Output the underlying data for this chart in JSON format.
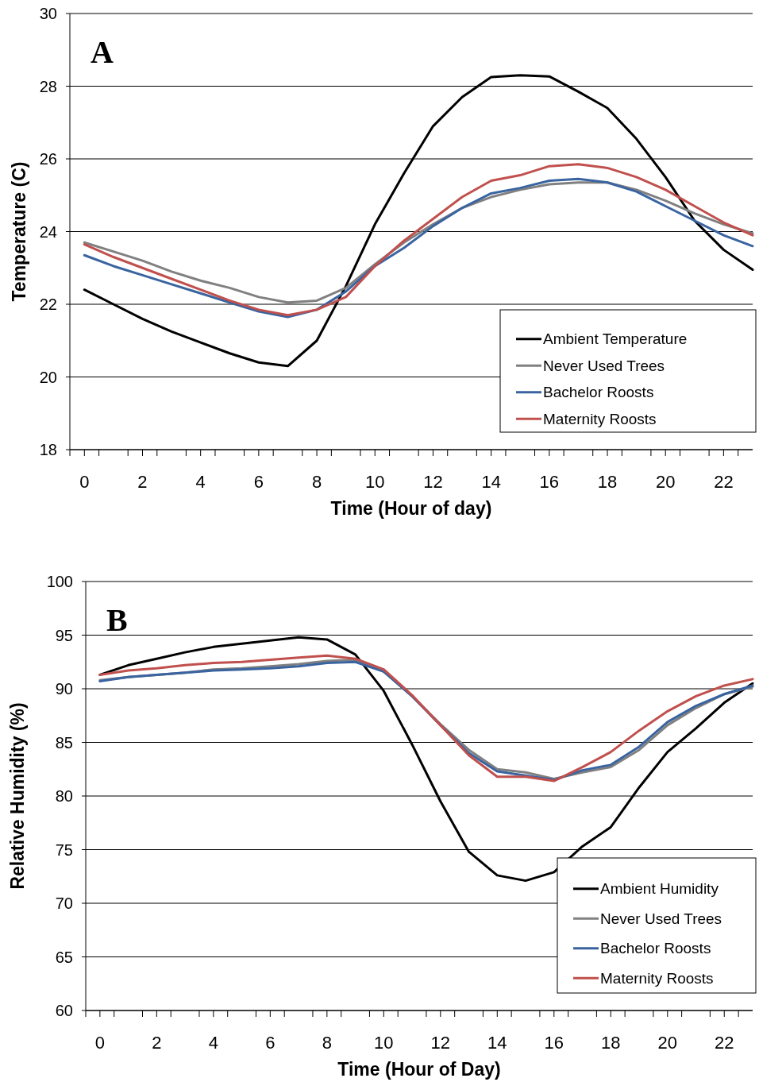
{
  "chart_data": [
    {
      "type": "line",
      "annotations": [
        "A"
      ],
      "xlabel": "Time (Hour of day)",
      "ylabel": "Temperature (C)",
      "x": [
        0,
        1,
        2,
        3,
        4,
        5,
        6,
        7,
        8,
        9,
        10,
        11,
        12,
        13,
        14,
        15,
        16,
        17,
        18,
        19,
        20,
        21,
        22,
        23
      ],
      "xlim": [
        -0.5,
        23
      ],
      "xticks": [
        {
          "value": -0.5,
          "label": null
        },
        0,
        {
          "value": 0.5,
          "label": null
        },
        {
          "value": 1.5,
          "label": null
        },
        2,
        {
          "value": 2.5,
          "label": null
        },
        {
          "value": 3.5,
          "label": null
        },
        4,
        {
          "value": 4.5,
          "label": null
        },
        {
          "value": 5.5,
          "label": null
        },
        6,
        {
          "value": 6.5,
          "label": null
        },
        {
          "value": 7.5,
          "label": null
        },
        8,
        {
          "value": 8.5,
          "label": null
        },
        {
          "value": 9.5,
          "label": null
        },
        10,
        {
          "value": 10.5,
          "label": null
        },
        {
          "value": 11.5,
          "label": null
        },
        12,
        {
          "value": 12.5,
          "label": null
        },
        {
          "value": 13.5,
          "label": null
        },
        14,
        {
          "value": 14.5,
          "label": null
        },
        {
          "value": 15.5,
          "label": null
        },
        16,
        {
          "value": 16.5,
          "label": null
        },
        {
          "value": 17.5,
          "label": null
        },
        18,
        {
          "value": 18.5,
          "label": null
        },
        {
          "value": 19.5,
          "label": null
        },
        20,
        {
          "value": 20.5,
          "label": null
        },
        {
          "value": 21.5,
          "label": null
        },
        22,
        {
          "value": 22.5,
          "label": null
        }
      ],
      "ylim": [
        18,
        30
      ],
      "yticks": [
        18,
        20,
        22,
        24,
        26,
        28,
        30
      ],
      "grid": "y",
      "legend": "bottom right",
      "line_style": "solid",
      "series": [
        {
          "name": "Ambient Temperature",
          "color": "#000000",
          "values": [
            22.4,
            22.0,
            21.6,
            21.25,
            20.95,
            20.65,
            20.4,
            20.3,
            21.0,
            22.5,
            24.2,
            25.6,
            26.9,
            27.7,
            28.25,
            28.3,
            28.27,
            27.85,
            27.4,
            26.55,
            25.5,
            24.3,
            23.5,
            22.95
          ]
        },
        {
          "name": "Never Used Trees",
          "color": "#808080",
          "values": [
            23.7,
            23.45,
            23.2,
            22.9,
            22.65,
            22.45,
            22.2,
            22.05,
            22.1,
            22.45,
            23.1,
            23.7,
            24.2,
            24.65,
            24.95,
            25.15,
            25.3,
            25.35,
            25.35,
            25.15,
            24.85,
            24.5,
            24.2,
            23.95
          ]
        },
        {
          "name": "Bachelor Roosts",
          "color": "#3a64a0",
          "values": [
            23.35,
            23.05,
            22.8,
            22.55,
            22.3,
            22.05,
            21.8,
            21.65,
            21.85,
            22.35,
            23.05,
            23.55,
            24.15,
            24.65,
            25.05,
            25.2,
            25.4,
            25.45,
            25.35,
            25.1,
            24.7,
            24.3,
            23.9,
            23.6
          ]
        },
        {
          "name": "Maternity Roosts",
          "color": "#c0504d",
          "values": [
            23.65,
            23.3,
            23.0,
            22.7,
            22.4,
            22.1,
            21.85,
            21.7,
            21.85,
            22.2,
            23.05,
            23.75,
            24.35,
            24.95,
            25.4,
            25.55,
            25.8,
            25.85,
            25.75,
            25.5,
            25.15,
            24.7,
            24.25,
            23.9
          ]
        }
      ]
    },
    {
      "type": "line",
      "annotations": [
        "B"
      ],
      "xlabel": "Time (Hour of Day)",
      "ylabel": "Relative Humidity (%)",
      "x": [
        0,
        1,
        2,
        3,
        4,
        5,
        6,
        7,
        8,
        9,
        10,
        11,
        12,
        13,
        14,
        15,
        16,
        17,
        18,
        19,
        20,
        21,
        22,
        23
      ],
      "xlim": [
        -0.5,
        23
      ],
      "xticks": [
        {
          "value": -0.5,
          "label": null
        },
        0,
        {
          "value": 0.5,
          "label": null
        },
        {
          "value": 1.5,
          "label": null
        },
        2,
        {
          "value": 2.5,
          "label": null
        },
        {
          "value": 3.5,
          "label": null
        },
        4,
        {
          "value": 4.5,
          "label": null
        },
        {
          "value": 5.5,
          "label": null
        },
        6,
        {
          "value": 6.5,
          "label": null
        },
        {
          "value": 7.5,
          "label": null
        },
        8,
        {
          "value": 8.5,
          "label": null
        },
        {
          "value": 9.5,
          "label": null
        },
        10,
        {
          "value": 10.5,
          "label": null
        },
        {
          "value": 11.5,
          "label": null
        },
        12,
        {
          "value": 12.5,
          "label": null
        },
        {
          "value": 13.5,
          "label": null
        },
        14,
        {
          "value": 14.5,
          "label": null
        },
        {
          "value": 15.5,
          "label": null
        },
        16,
        {
          "value": 16.5,
          "label": null
        },
        {
          "value": 17.5,
          "label": null
        },
        18,
        {
          "value": 18.5,
          "label": null
        },
        {
          "value": 19.5,
          "label": null
        },
        20,
        {
          "value": 20.5,
          "label": null
        },
        {
          "value": 21.5,
          "label": null
        },
        22,
        {
          "value": 22.5,
          "label": null
        }
      ],
      "ylim": [
        60,
        100
      ],
      "yticks": [
        60,
        65,
        70,
        75,
        80,
        85,
        90,
        95,
        100
      ],
      "grid": "y",
      "legend": "bottom right",
      "line_style": "solid",
      "series": [
        {
          "name": "Ambient Humidity",
          "color": "#000000",
          "values": [
            91.3,
            92.2,
            92.8,
            93.4,
            93.9,
            94.2,
            94.5,
            94.8,
            94.6,
            93.2,
            89.8,
            84.8,
            79.5,
            74.8,
            72.6,
            72.1,
            72.9,
            75.3,
            77.1,
            80.8,
            84.1,
            86.3,
            88.7,
            90.5
          ]
        },
        {
          "name": "Never Used Trees",
          "color": "#808080",
          "values": [
            90.8,
            91.1,
            91.3,
            91.5,
            91.8,
            91.9,
            92.1,
            92.3,
            92.6,
            92.7,
            91.6,
            89.3,
            86.7,
            84.3,
            82.5,
            82.2,
            81.6,
            82.2,
            82.7,
            84.3,
            86.6,
            88.2,
            89.5,
            90.2
          ]
        },
        {
          "name": "Bachelor Roosts",
          "color": "#3a64a0",
          "values": [
            90.7,
            91.1,
            91.3,
            91.5,
            91.7,
            91.8,
            91.9,
            92.1,
            92.4,
            92.5,
            91.6,
            89.3,
            86.6,
            84.0,
            82.3,
            81.9,
            81.5,
            82.4,
            82.9,
            84.6,
            86.9,
            88.4,
            89.5,
            90.3
          ]
        },
        {
          "name": "Maternity Roosts",
          "color": "#c0504d",
          "values": [
            91.3,
            91.7,
            91.9,
            92.2,
            92.4,
            92.5,
            92.7,
            92.9,
            93.1,
            92.8,
            91.8,
            89.4,
            86.6,
            83.8,
            81.8,
            81.8,
            81.4,
            82.7,
            84.1,
            86.1,
            87.9,
            89.3,
            90.3,
            90.9
          ]
        }
      ]
    }
  ]
}
